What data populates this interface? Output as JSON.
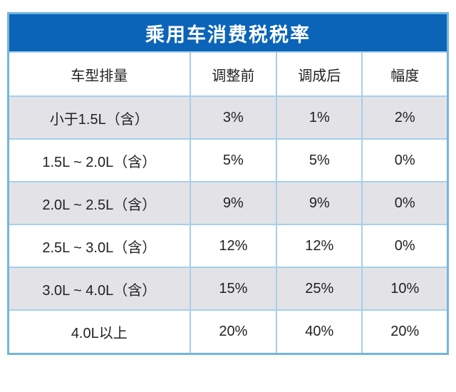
{
  "chart_data": {
    "type": "table",
    "title": "乘用车消费税税率",
    "columns": [
      "车型排量",
      "调整前",
      "调成后",
      "幅度"
    ],
    "rows": [
      [
        "小于1.5L（含）",
        "3%",
        "1%",
        "2%"
      ],
      [
        "1.5L ~ 2.0L（含）",
        "5%",
        "5%",
        "0%"
      ],
      [
        "2.0L ~ 2.5L（含）",
        "9%",
        "9%",
        "0%"
      ],
      [
        "2.5L ~ 3.0L（含）",
        "12%",
        "12%",
        "0%"
      ],
      [
        "3.0L ~ 4.0L（含）",
        "15%",
        "25%",
        "10%"
      ],
      [
        "4.0L以上",
        "20%",
        "40%",
        "20%"
      ]
    ],
    "layout_hints": {
      "alternating_row_shading": "rows 1,3,5 shaded gray",
      "grid": "on"
    }
  },
  "colors": {
    "title_bg": "#0b64b8",
    "title_text": "#ffffff",
    "outer_border": "#73b5df",
    "grid_line": "#a6cfe9",
    "row_alt_bg": "#e3e3e7",
    "row_bg": "#ffffff",
    "cell_text": "#222222"
  }
}
